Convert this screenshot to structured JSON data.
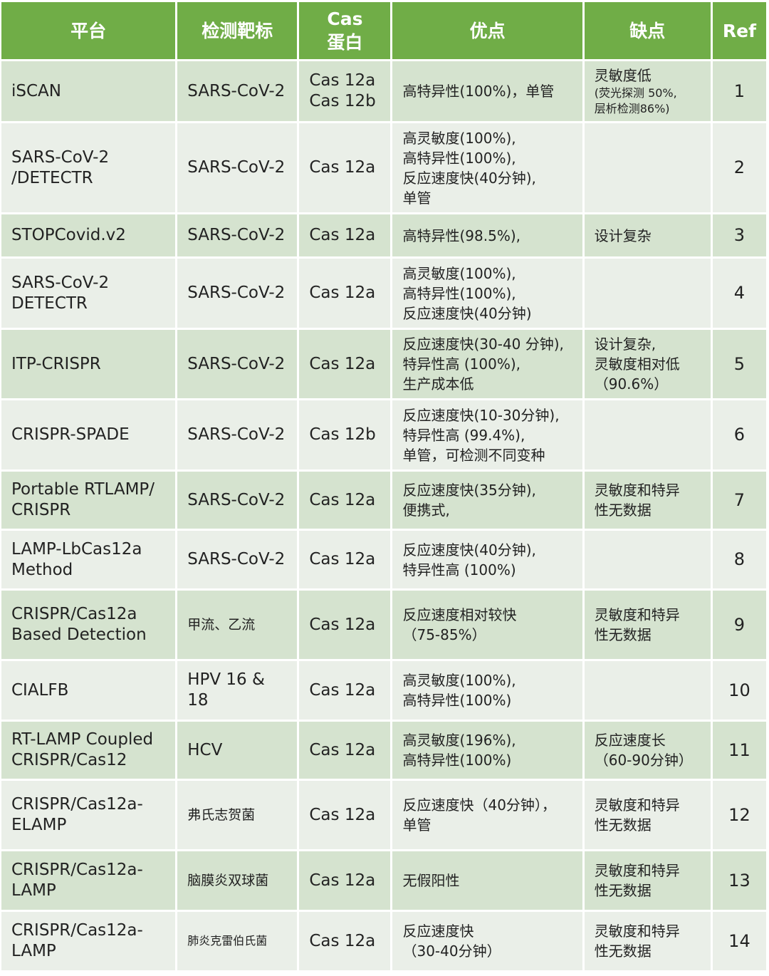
{
  "header": [
    "平台",
    "检测靶标",
    "Cas\n蛋白",
    "优点",
    "缺点",
    "Ref"
  ],
  "colors": {
    "header_bg": "#70ad47",
    "row_odd": "#d5e3cf",
    "row_even": "#eaefe8"
  },
  "rows": [
    {
      "platform": "iSCAN",
      "target": "SARS-CoV-2",
      "cas": "Cas 12a\nCas 12b",
      "advantages": "高特异性(100%)，单管",
      "disadvantages": "灵敏度低",
      "disadvantages_note": "(荧光探测 50%,\n层析检测86%)",
      "ref": "1",
      "h": 84
    },
    {
      "platform": "SARS-CoV-2\n/DETECTR",
      "target": "SARS-CoV-2",
      "cas": "Cas 12a",
      "advantages": "高灵敏度(100%),\n高特异性(100%),\n反应速度快(40分钟),\n单管",
      "disadvantages": "",
      "ref": "2",
      "h": 125
    },
    {
      "platform": "STOPCovid.v2",
      "target": "SARS-CoV-2",
      "cas": "Cas 12a",
      "advantages": "高特异性(98.5%),",
      "disadvantages": "设计复杂",
      "ref": "3",
      "h": 59
    },
    {
      "platform": "SARS-CoV-2\nDETECTR",
      "target": "SARS-CoV-2",
      "cas": "Cas 12a",
      "advantages": "高灵敏度(100%),\n高特异性(100%),\n反应速度快(40分钟)",
      "disadvantages": "",
      "ref": "4",
      "h": 97
    },
    {
      "platform": "ITP-CRISPR",
      "target": "SARS-CoV-2",
      "cas": "Cas 12a",
      "advantages": "反应速度快(30-40 分钟),\n特异性高 (100%),\n生产成本低",
      "disadvantages": "设计复杂,\n灵敏度相对低\n（90.6%）",
      "ref": "5",
      "h": 96
    },
    {
      "platform": "CRISPR-SPADE",
      "target": "SARS-CoV-2",
      "cas": "Cas 12b",
      "advantages": "反应速度快(10-30分钟),\n特异性高 (99.4%),\n单管，可检测不同变种",
      "disadvantages": "",
      "ref": "6",
      "h": 97
    },
    {
      "platform": "Portable RTLAMP/\nCRISPR",
      "target": "SARS-CoV-2",
      "cas": "Cas 12a",
      "advantages": "反应速度快(35分钟),\n便携式,",
      "disadvantages": "灵敏度和特异\n性无数据",
      "ref": "7",
      "h": 80
    },
    {
      "platform": "LAMP-LbCas12a\nMethod",
      "target": "SARS-CoV-2",
      "cas": "Cas 12a",
      "advantages": "反应速度快(40分钟),\n特异性高 (100%)",
      "disadvantages": "",
      "ref": "8",
      "h": 81
    },
    {
      "platform": "CRISPR/Cas12a\nBased Detection",
      "target": "甲流、乙流",
      "cas": "Cas 12a",
      "advantages": "反应速度相对较快\n（75-85%）",
      "disadvantages": "灵敏度和特异\n性无数据",
      "ref": "9",
      "h": 96
    },
    {
      "platform": "CIALFB",
      "target": "HPV 16 &\n18",
      "cas": "Cas 12a",
      "advantages": "高灵敏度(100%),\n高特异性(100%)",
      "disadvantages": "",
      "ref": "10",
      "h": 82
    },
    {
      "platform": "RT-LAMP Coupled\nCRISPR/Cas12",
      "target": "HCV",
      "cas": "Cas 12a",
      "advantages": "高灵敏度(196%),\n高特异性(100%)",
      "disadvantages": "反应速度长\n（60-90分钟）",
      "ref": "11",
      "h": 80
    },
    {
      "platform": "CRISPR/Cas12a-\nELAMP",
      "target": "弗氏志贺菌",
      "cas": "Cas 12a",
      "advantages": "反应速度快（40分钟），\n单管",
      "disadvantages": "灵敏度和特异\n性无数据",
      "ref": "12",
      "h": 96
    },
    {
      "platform": "CRISPR/Cas12a-\nLAMP",
      "target": "脑膜炎双球菌",
      "cas": "Cas 12a",
      "advantages": "无假阳性",
      "disadvantages": "灵敏度和特异\n性无数据",
      "ref": "13",
      "h": 82
    },
    {
      "platform": "CRISPR/Cas12a-\nLAMP",
      "target": "肺炎克雷伯氏菌",
      "cas": "Cas 12a",
      "advantages": "反应速度快\n（30-40分钟）",
      "disadvantages": "灵敏度和特异\n性无数据",
      "ref": "14",
      "h": 82
    }
  ]
}
